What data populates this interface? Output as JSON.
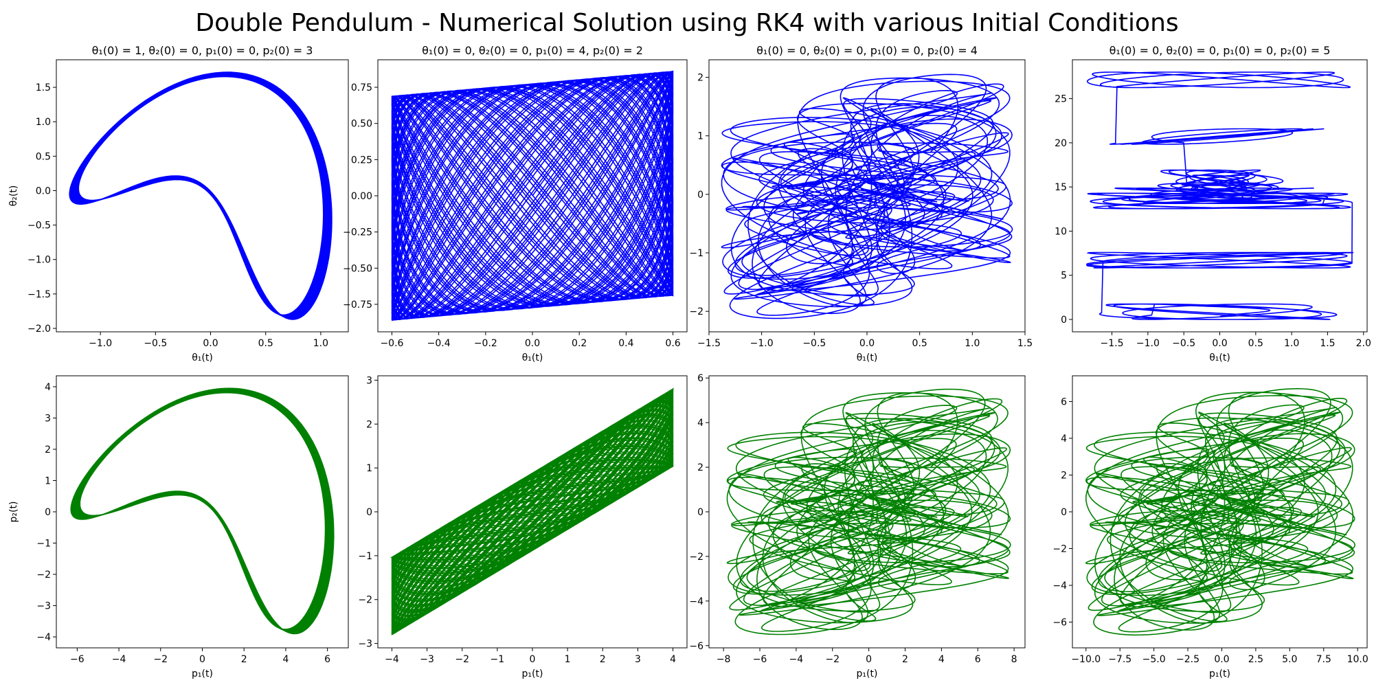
{
  "figure": {
    "title": "Double Pendulum - Numerical Solution using RK4 with various Initial Conditions"
  },
  "chart_data": [
    {
      "type": "line",
      "row": 1,
      "col": 1,
      "title": "θ₁(0) = 1, θ₂(0) = 0, p₁(0) = 0, p₂(0) = 3",
      "xlabel": "θ₁(t)",
      "ylabel": "θ₂(t)",
      "xlim": [
        -1.4,
        1.25
      ],
      "ylim": [
        -2.05,
        1.9
      ],
      "xticks": [
        -1.0,
        -0.5,
        0.0,
        0.5,
        1.0
      ],
      "yticks": [
        -2.0,
        -1.5,
        -1.0,
        -0.5,
        0.0,
        0.5,
        1.0,
        1.5
      ],
      "color": "#0000ff",
      "grid": false,
      "shape": {
        "kind": "lissajous-loop",
        "x_range": [
          -1.28,
          1.1
        ],
        "y_range": [
          -1.87,
          1.72
        ]
      }
    },
    {
      "type": "line",
      "row": 1,
      "col": 2,
      "title": "θ₁(0) = 0, θ₂(0) = 0, p₁(0) = 4, p₂(0) = 2",
      "xlabel": "θ₁(t)",
      "ylabel": "",
      "xlim": [
        -0.66,
        0.66
      ],
      "ylim": [
        -0.94,
        0.94
      ],
      "xticks": [
        -0.6,
        -0.4,
        -0.2,
        0.0,
        0.2,
        0.4,
        0.6
      ],
      "yticks": [
        -0.75,
        -0.5,
        -0.25,
        0.0,
        0.25,
        0.5,
        0.75
      ],
      "color": "#0000ff",
      "grid": false,
      "shape": {
        "kind": "quasi-periodic-mesh",
        "x_range": [
          -0.6,
          0.6
        ],
        "y_range": [
          -0.86,
          0.86
        ]
      }
    },
    {
      "type": "line",
      "row": 1,
      "col": 3,
      "title": "θ₁(0) = 0, θ₂(0) = 0, p₁(0) = 0, p₂(0) = 4",
      "xlabel": "θ₁(t)",
      "ylabel": "",
      "xlim": [
        -1.5,
        1.5
      ],
      "ylim": [
        -2.35,
        2.3
      ],
      "xticks": [
        -1.5,
        -1.0,
        -0.5,
        0.0,
        0.5,
        1.0,
        1.5
      ],
      "yticks": [
        -2,
        -1,
        0,
        1,
        2
      ],
      "color": "#0000ff",
      "grid": false,
      "shape": {
        "kind": "chaotic",
        "x_range": [
          -1.38,
          1.38
        ],
        "y_range": [
          -2.12,
          2.05
        ]
      }
    },
    {
      "type": "line",
      "row": 1,
      "col": 4,
      "title": "θ₁(0) = 0, θ₂(0) = 0, p₁(0) = 0, p₂(0) = 5",
      "xlabel": "θ₁(t)",
      "ylabel": "",
      "xlim": [
        -2.05,
        2.05
      ],
      "ylim": [
        -1.4,
        29.4
      ],
      "xticks": [
        -1.5,
        -1.0,
        -0.5,
        0.0,
        0.5,
        1.0,
        1.5,
        2.0
      ],
      "yticks": [
        0,
        5,
        10,
        15,
        20,
        25
      ],
      "color": "#0000ff",
      "grid": false,
      "shape": {
        "kind": "rotating-chaotic",
        "x_range": [
          -1.85,
          1.85
        ],
        "y_range": [
          0,
          28
        ]
      }
    },
    {
      "type": "line",
      "row": 2,
      "col": 1,
      "title": "",
      "xlabel": "p₁(t)",
      "ylabel": "p₂(t)",
      "xlim": [
        -7.0,
        7.0
      ],
      "ylim": [
        -4.35,
        4.35
      ],
      "xticks": [
        -6,
        -4,
        -2,
        0,
        2,
        4,
        6
      ],
      "yticks": [
        -4,
        -3,
        -2,
        -1,
        0,
        1,
        2,
        3,
        4
      ],
      "color": "#008000",
      "grid": false,
      "shape": {
        "kind": "lissajous-loop",
        "x_range": [
          -6.3,
          6.3
        ],
        "y_range": [
          -3.9,
          3.95
        ]
      }
    },
    {
      "type": "line",
      "row": 2,
      "col": 2,
      "title": "",
      "xlabel": "p₁(t)",
      "ylabel": "",
      "xlim": [
        -4.4,
        4.4
      ],
      "ylim": [
        -3.1,
        3.1
      ],
      "xticks": [
        -4,
        -3,
        -2,
        -1,
        0,
        1,
        2,
        3,
        4
      ],
      "yticks": [
        -3,
        -2,
        -1,
        0,
        1,
        2,
        3
      ],
      "color": "#008000",
      "grid": false,
      "shape": {
        "kind": "quasi-periodic-band",
        "x_range": [
          -4.0,
          4.0
        ],
        "y_range": [
          -2.8,
          2.8
        ]
      }
    },
    {
      "type": "line",
      "row": 2,
      "col": 3,
      "title": "",
      "xlabel": "p₁(t)",
      "ylabel": "",
      "xlim": [
        -8.8,
        8.6
      ],
      "ylim": [
        -6.1,
        6.1
      ],
      "xticks": [
        -8,
        -6,
        -4,
        -2,
        0,
        2,
        4,
        6,
        8
      ],
      "yticks": [
        -6,
        -4,
        -2,
        0,
        2,
        4,
        6
      ],
      "color": "#008000",
      "grid": false,
      "shape": {
        "kind": "chaotic",
        "x_range": [
          -7.8,
          7.8
        ],
        "y_range": [
          -5.5,
          5.5
        ]
      }
    },
    {
      "type": "line",
      "row": 2,
      "col": 4,
      "title": "",
      "xlabel": "p₁(t)",
      "ylabel": "",
      "xlim": [
        -11.0,
        10.7
      ],
      "ylim": [
        -7.4,
        7.4
      ],
      "xticks": [
        -10.0,
        -7.5,
        -5.0,
        -2.5,
        0.0,
        2.5,
        5.0,
        7.5,
        10.0
      ],
      "yticks": [
        -6,
        -4,
        -2,
        0,
        2,
        4,
        6
      ],
      "color": "#008000",
      "grid": false,
      "shape": {
        "kind": "chaotic",
        "x_range": [
          -10.0,
          9.8
        ],
        "y_range": [
          -6.7,
          6.7
        ]
      }
    }
  ]
}
